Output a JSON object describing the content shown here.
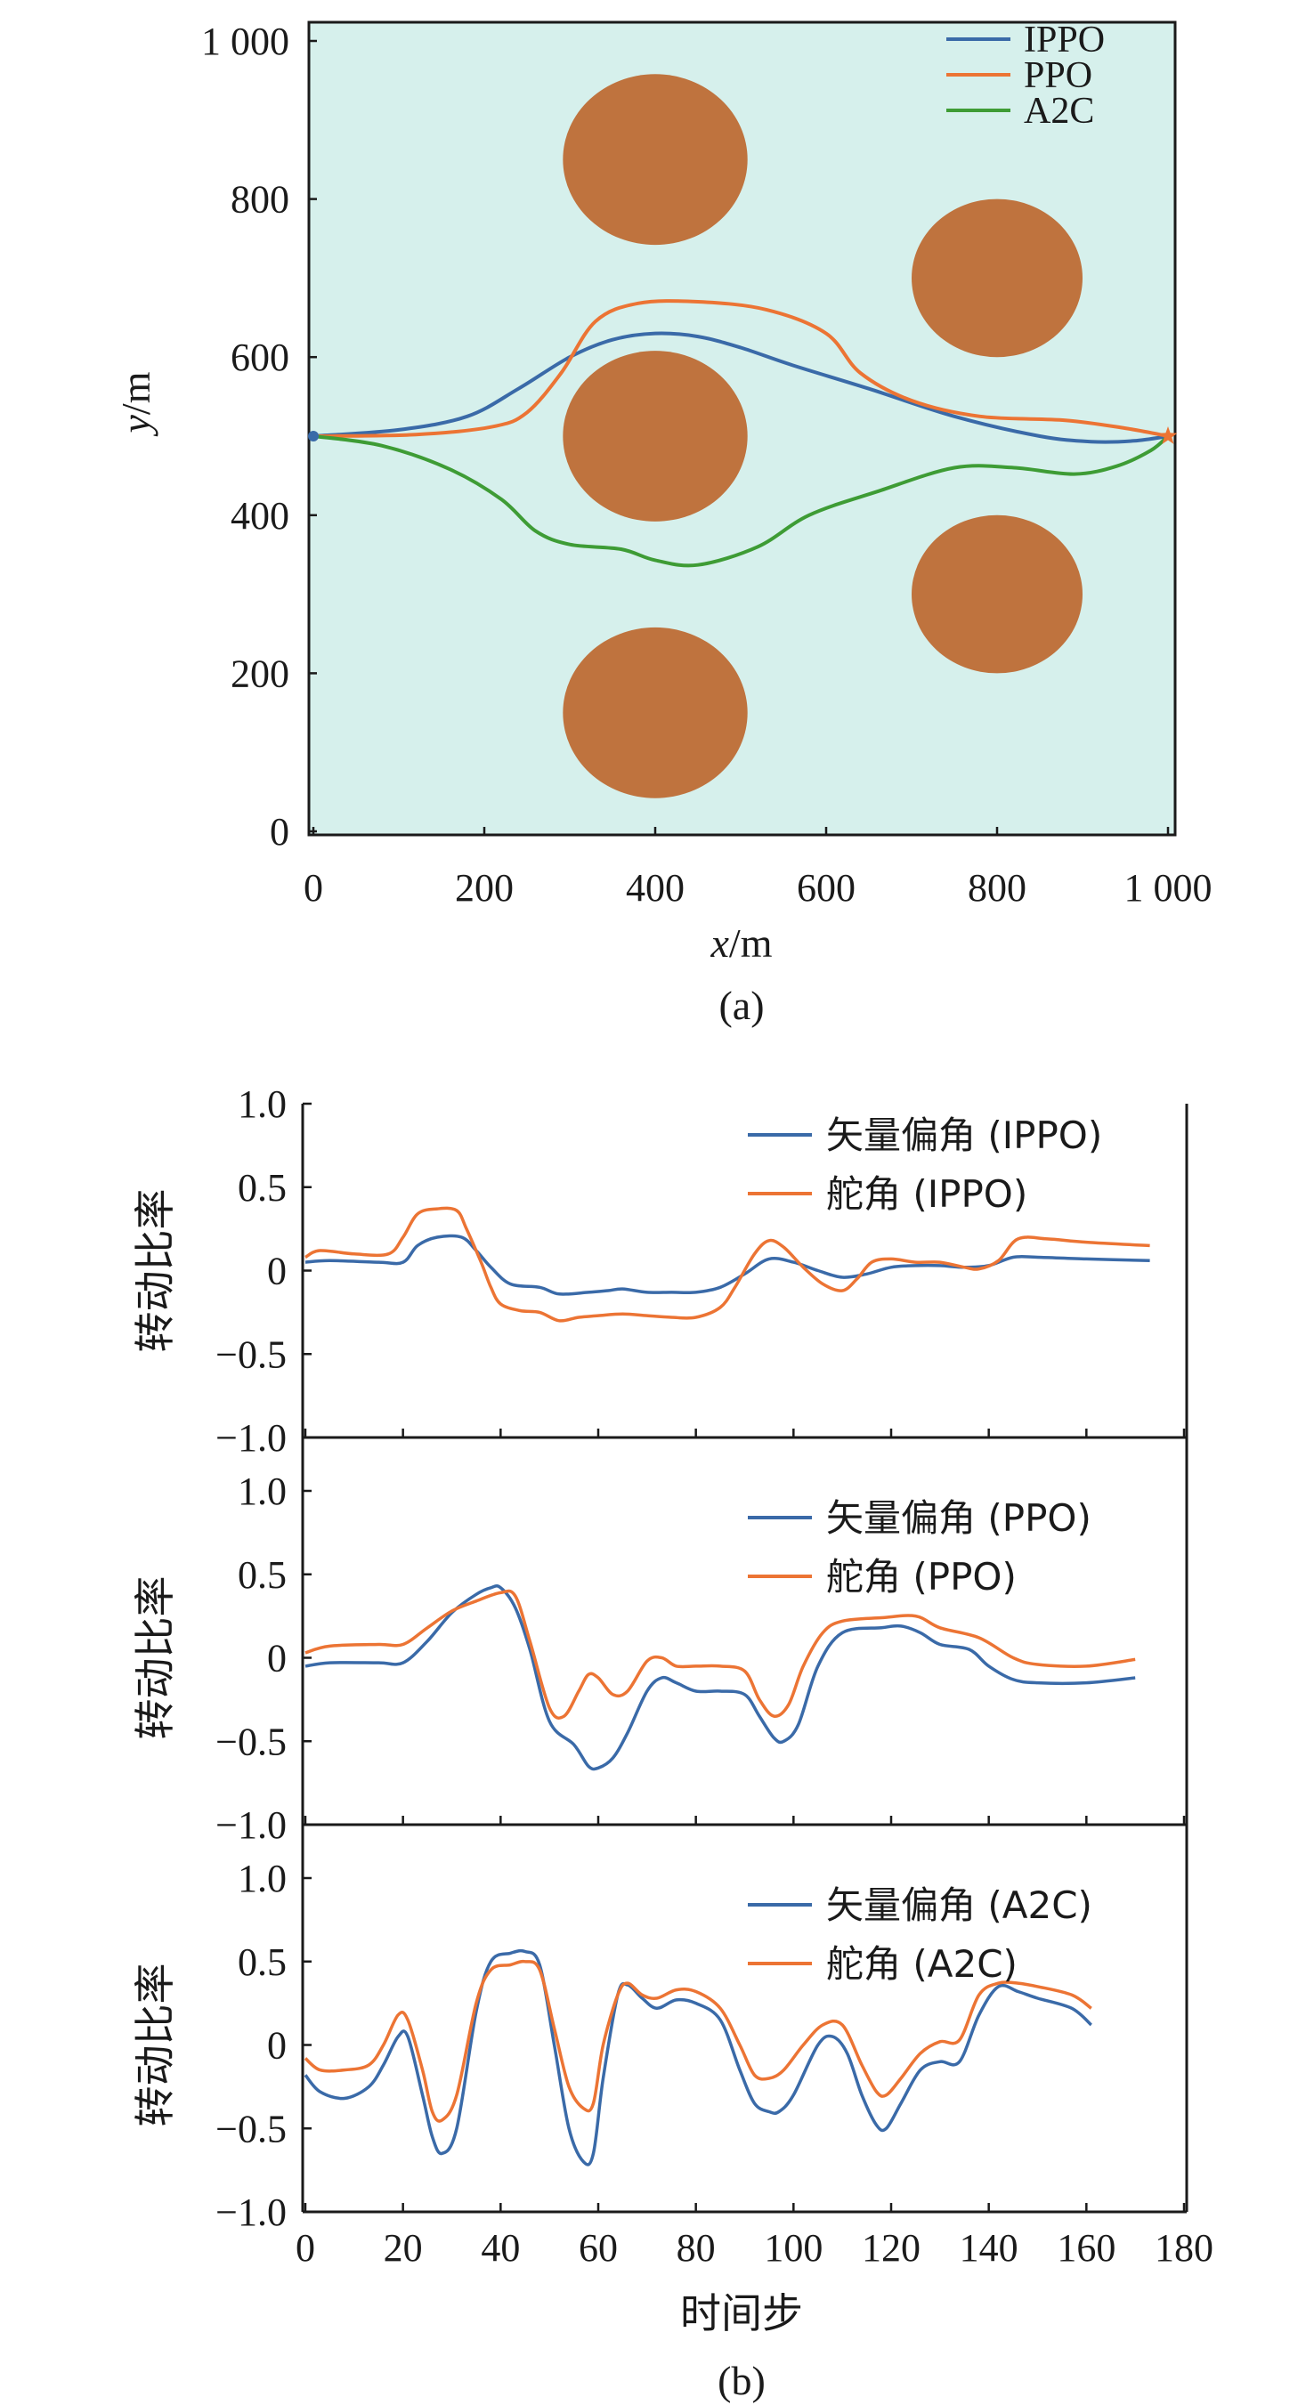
{
  "chart_data": [
    {
      "type": "line",
      "panel_label": "(a)",
      "xlabel_var": "x",
      "ylabel_var": "y",
      "unit": "/m",
      "xlim": [
        0,
        1000
      ],
      "ylim": [
        0,
        1000
      ],
      "xticks": [
        0,
        200,
        400,
        600,
        800,
        1000
      ],
      "yticks": [
        0,
        200,
        400,
        600,
        800,
        1000
      ],
      "xtick_labels": [
        "0",
        "200",
        "400",
        "600",
        "800",
        "1 000"
      ],
      "ytick_labels": [
        "0",
        "200",
        "400",
        "600",
        "800",
        "1 000"
      ],
      "background": "#d6f0ec",
      "obstacle_color": "#bf733e",
      "obstacles": [
        {
          "cx": 400,
          "cy": 850,
          "r": 108
        },
        {
          "cx": 400,
          "cy": 500,
          "r": 108
        },
        {
          "cx": 400,
          "cy": 150,
          "r": 108
        },
        {
          "cx": 800,
          "cy": 700,
          "r": 100
        },
        {
          "cx": 800,
          "cy": 300,
          "r": 100
        }
      ],
      "start": {
        "x": 0,
        "y": 500
      },
      "goal": {
        "x": 1000,
        "y": 500
      },
      "legend_position": "top-right",
      "series": [
        {
          "name": "IPPO",
          "color": "#3a6aa8",
          "x": [
            0,
            100,
            180,
            240,
            300,
            350,
            400,
            450,
            500,
            560,
            650,
            750,
            850,
            910,
            960,
            1000
          ],
          "y": [
            500,
            508,
            525,
            560,
            600,
            622,
            630,
            626,
            612,
            590,
            560,
            525,
            500,
            493,
            494,
            500
          ]
        },
        {
          "name": "PPO",
          "color": "#ec7434",
          "x": [
            0,
            120,
            210,
            250,
            290,
            330,
            380,
            450,
            530,
            600,
            640,
            700,
            780,
            880,
            950,
            1000
          ],
          "y": [
            500,
            502,
            512,
            530,
            580,
            645,
            668,
            670,
            660,
            630,
            580,
            545,
            525,
            520,
            510,
            500
          ]
        },
        {
          "name": "A2C",
          "color": "#3e9c35",
          "x": [
            0,
            80,
            160,
            220,
            260,
            300,
            360,
            400,
            450,
            520,
            580,
            660,
            750,
            820,
            890,
            940,
            980,
            1000
          ],
          "y": [
            500,
            488,
            458,
            420,
            380,
            363,
            357,
            343,
            337,
            360,
            400,
            430,
            460,
            460,
            452,
            462,
            482,
            500
          ]
        }
      ]
    },
    {
      "type": "line",
      "panel_label": "(b)",
      "xlabel": "时间步",
      "ylabel": "转动比率",
      "xlim": [
        0,
        180
      ],
      "xticks": [
        0,
        20,
        40,
        60,
        80,
        100,
        120,
        140,
        160,
        180
      ],
      "xtick_labels": [
        "0",
        "20",
        "40",
        "60",
        "80",
        "100",
        "120",
        "140",
        "160",
        "180"
      ],
      "ytick_labels": [
        "1.0",
        "0.5",
        "0",
        "−0.5",
        "−1.0"
      ],
      "subplots": [
        {
          "ylim": [
            -1,
            1
          ],
          "yticks": [
            1,
            0.5,
            0,
            -0.5,
            -1
          ],
          "legend_position": "top-right",
          "series": [
            {
              "name": "矢量偏角 (IPPO)",
              "color": "#3a6aa8",
              "x": [
                0,
                5,
                15,
                20,
                23,
                27,
                32,
                35,
                38,
                42,
                48,
                52,
                58,
                62,
                65,
                70,
                75,
                80,
                85,
                90,
                95,
                100,
                105,
                110,
                115,
                120,
                125,
                130,
                135,
                140,
                145,
                150,
                160,
                173
              ],
              "y": [
                0.05,
                0.06,
                0.05,
                0.05,
                0.15,
                0.2,
                0.2,
                0.12,
                0.02,
                -0.08,
                -0.1,
                -0.14,
                -0.13,
                -0.12,
                -0.11,
                -0.13,
                -0.13,
                -0.13,
                -0.1,
                -0.02,
                0.07,
                0.05,
                0.0,
                -0.04,
                -0.02,
                0.02,
                0.03,
                0.03,
                0.02,
                0.03,
                0.08,
                0.08,
                0.07,
                0.06
              ]
            },
            {
              "name": "舵角 (IPPO)",
              "color": "#ec7434",
              "x": [
                0,
                3,
                10,
                17,
                20,
                23,
                27,
                31,
                33,
                36,
                38,
                40,
                44,
                48,
                52,
                56,
                60,
                65,
                70,
                75,
                80,
                85,
                88,
                92,
                95,
                98,
                102,
                106,
                110,
                113,
                116,
                120,
                125,
                130,
                135,
                138,
                142,
                146,
                152,
                160,
                173
              ],
              "y": [
                0.08,
                0.12,
                0.1,
                0.1,
                0.2,
                0.34,
                0.37,
                0.36,
                0.25,
                0.05,
                -0.1,
                -0.2,
                -0.24,
                -0.25,
                -0.3,
                -0.28,
                -0.27,
                -0.26,
                -0.27,
                -0.28,
                -0.28,
                -0.22,
                -0.1,
                0.1,
                0.18,
                0.14,
                0.02,
                -0.08,
                -0.12,
                -0.05,
                0.05,
                0.07,
                0.05,
                0.05,
                0.02,
                0.01,
                0.06,
                0.19,
                0.19,
                0.17,
                0.15
              ]
            }
          ]
        },
        {
          "ylim": [
            -1,
            1
          ],
          "yticks": [
            1,
            0.5,
            0,
            -0.5,
            -1
          ],
          "legend_position": "top-right",
          "series": [
            {
              "name": "矢量偏角 (PPO)",
              "color": "#3a6aa8",
              "x": [
                0,
                5,
                15,
                20,
                25,
                30,
                35,
                38,
                40,
                43,
                46,
                50,
                55,
                58,
                60,
                63,
                66,
                70,
                73,
                76,
                80,
                85,
                90,
                93,
                96,
                98,
                101,
                105,
                110,
                118,
                122,
                126,
                130,
                136,
                140,
                145,
                150,
                160,
                170
              ],
              "y": [
                -0.05,
                -0.03,
                -0.03,
                -0.03,
                0.1,
                0.27,
                0.38,
                0.42,
                0.42,
                0.3,
                0.05,
                -0.38,
                -0.52,
                -0.65,
                -0.66,
                -0.6,
                -0.45,
                -0.2,
                -0.12,
                -0.15,
                -0.2,
                -0.2,
                -0.22,
                -0.35,
                -0.48,
                -0.5,
                -0.4,
                -0.05,
                0.15,
                0.18,
                0.19,
                0.15,
                0.08,
                0.05,
                -0.05,
                -0.13,
                -0.15,
                -0.15,
                -0.12
              ]
            },
            {
              "name": "舵角 (PPO)",
              "color": "#ec7434",
              "x": [
                0,
                5,
                15,
                20,
                25,
                30,
                35,
                40,
                43,
                46,
                50,
                53,
                56,
                58,
                60,
                63,
                66,
                70,
                73,
                76,
                80,
                85,
                90,
                93,
                96,
                99,
                102,
                106,
                110,
                118,
                125,
                130,
                138,
                145,
                150,
                160,
                170
              ],
              "y": [
                0.03,
                0.07,
                0.08,
                0.08,
                0.18,
                0.28,
                0.34,
                0.39,
                0.37,
                0.1,
                -0.3,
                -0.35,
                -0.2,
                -0.1,
                -0.12,
                -0.22,
                -0.2,
                -0.02,
                0.0,
                -0.05,
                -0.05,
                -0.05,
                -0.08,
                -0.25,
                -0.35,
                -0.28,
                -0.05,
                0.15,
                0.22,
                0.24,
                0.25,
                0.18,
                0.12,
                0.0,
                -0.04,
                -0.05,
                -0.01
              ]
            }
          ]
        },
        {
          "ylim": [
            -1,
            1
          ],
          "yticks": [
            1,
            0.5,
            0,
            -0.5,
            -1
          ],
          "legend_position": "top-right",
          "series": [
            {
              "name": "矢量偏角 (A2C)",
              "color": "#3a6aa8",
              "x": [
                0,
                3,
                8,
                13,
                16,
                19,
                21,
                24,
                26,
                28,
                31,
                35,
                38,
                42,
                45,
                48,
                51,
                54,
                57,
                59,
                61,
                64,
                66,
                69,
                72,
                76,
                80,
                85,
                89,
                92,
                95,
                97,
                100,
                105,
                108,
                111,
                114,
                117,
                119,
                122,
                126,
                130,
                134,
                138,
                142,
                146,
                150,
                157,
                161
              ],
              "y": [
                -0.18,
                -0.28,
                -0.32,
                -0.25,
                -0.12,
                0.05,
                0.05,
                -0.3,
                -0.55,
                -0.65,
                -0.5,
                0.2,
                0.5,
                0.55,
                0.56,
                0.48,
                0.0,
                -0.5,
                -0.7,
                -0.65,
                -0.2,
                0.3,
                0.36,
                0.28,
                0.22,
                0.27,
                0.25,
                0.15,
                -0.15,
                -0.35,
                -0.4,
                -0.4,
                -0.3,
                0.0,
                0.05,
                -0.05,
                -0.3,
                -0.48,
                -0.5,
                -0.35,
                -0.15,
                -0.1,
                -0.1,
                0.18,
                0.35,
                0.32,
                0.28,
                0.22,
                0.12
              ]
            },
            {
              "name": "舵角 (A2C)",
              "color": "#ec7434",
              "x": [
                0,
                3,
                8,
                13,
                16,
                19,
                21,
                24,
                26,
                28,
                31,
                35,
                38,
                42,
                45,
                48,
                51,
                54,
                57,
                59,
                61,
                64,
                66,
                69,
                72,
                76,
                80,
                85,
                89,
                92,
                95,
                98,
                102,
                106,
                110,
                114,
                117,
                119,
                122,
                126,
                130,
                134,
                138,
                142,
                146,
                150,
                157,
                161
              ],
              "y": [
                -0.08,
                -0.15,
                -0.15,
                -0.12,
                0.0,
                0.18,
                0.15,
                -0.15,
                -0.4,
                -0.45,
                -0.3,
                0.25,
                0.45,
                0.48,
                0.5,
                0.45,
                0.1,
                -0.25,
                -0.38,
                -0.35,
                0.0,
                0.3,
                0.37,
                0.3,
                0.28,
                0.33,
                0.32,
                0.22,
                0.0,
                -0.18,
                -0.2,
                -0.15,
                0.0,
                0.12,
                0.12,
                -0.12,
                -0.28,
                -0.3,
                -0.2,
                -0.05,
                0.02,
                0.03,
                0.3,
                0.37,
                0.37,
                0.35,
                0.3,
                0.22
              ]
            }
          ]
        }
      ]
    }
  ]
}
